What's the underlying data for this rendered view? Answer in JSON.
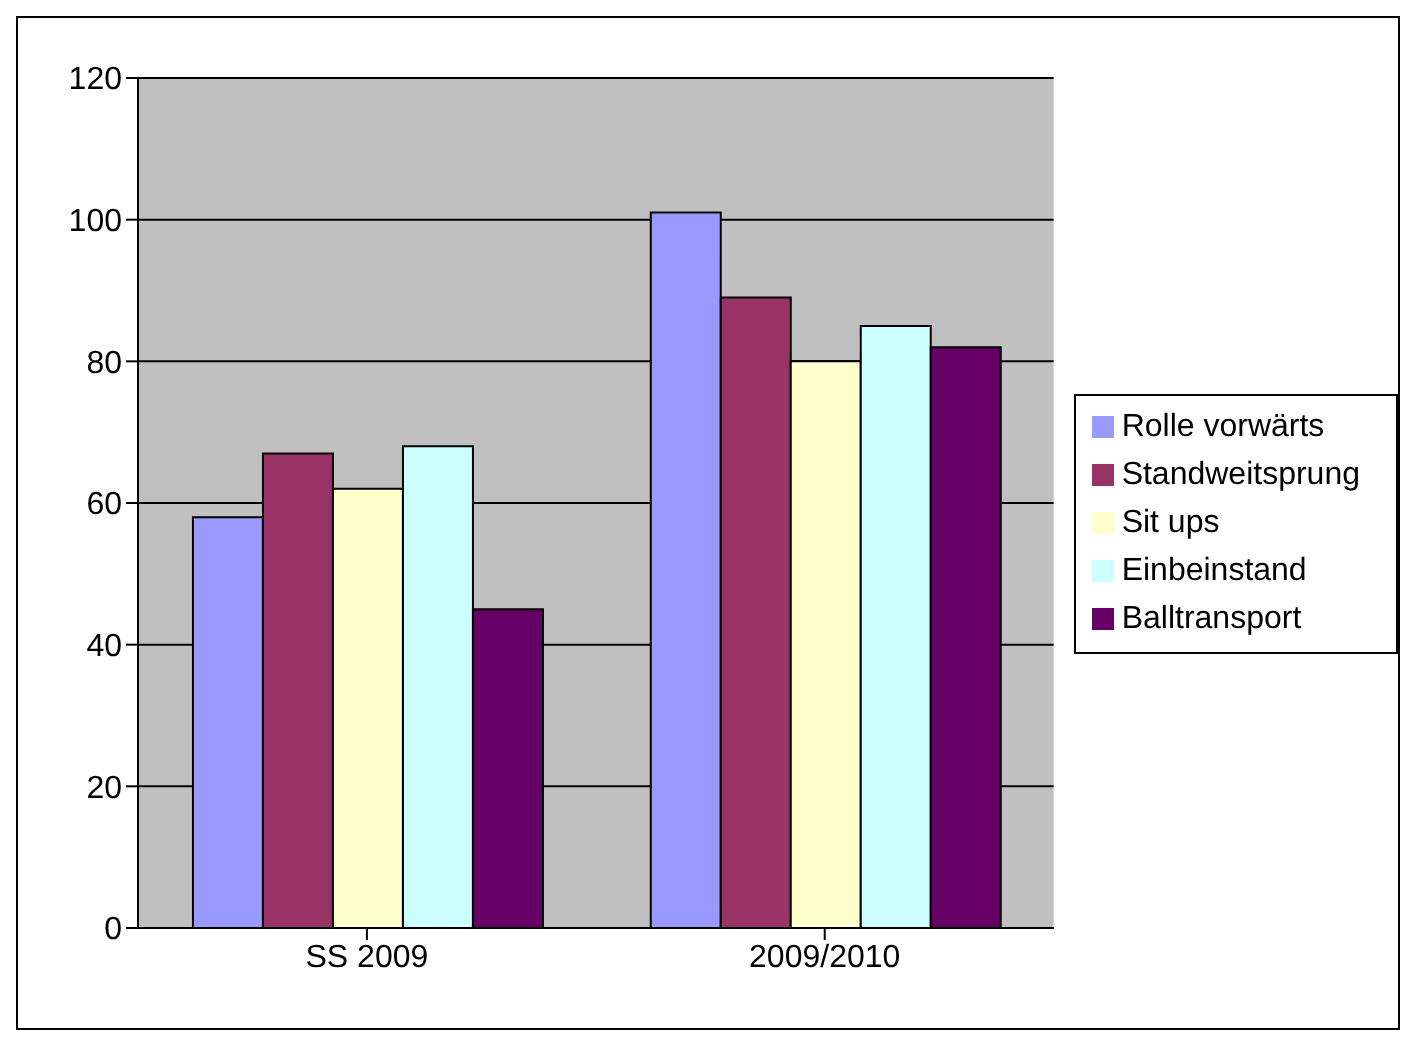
{
  "chart_data": {
    "type": "bar",
    "categories": [
      "SS 2009",
      "2009/2010"
    ],
    "series": [
      {
        "name": "Rolle vorwärts",
        "color": "#9999ff",
        "values": [
          58,
          101
        ]
      },
      {
        "name": "Standweitsprung",
        "color": "#993366",
        "values": [
          67,
          89
        ]
      },
      {
        "name": "Sit ups",
        "color": "#ffffcc",
        "values": [
          62,
          80
        ]
      },
      {
        "name": "Einbeinstand",
        "color": "#ccffff",
        "values": [
          68,
          85
        ]
      },
      {
        "name": "Balltransport",
        "color": "#660066",
        "values": [
          45,
          82
        ]
      }
    ],
    "ylim": [
      0,
      120
    ],
    "yticks": [
      0,
      20,
      40,
      60,
      80,
      100,
      120
    ],
    "grid": "y",
    "legend": "right"
  }
}
